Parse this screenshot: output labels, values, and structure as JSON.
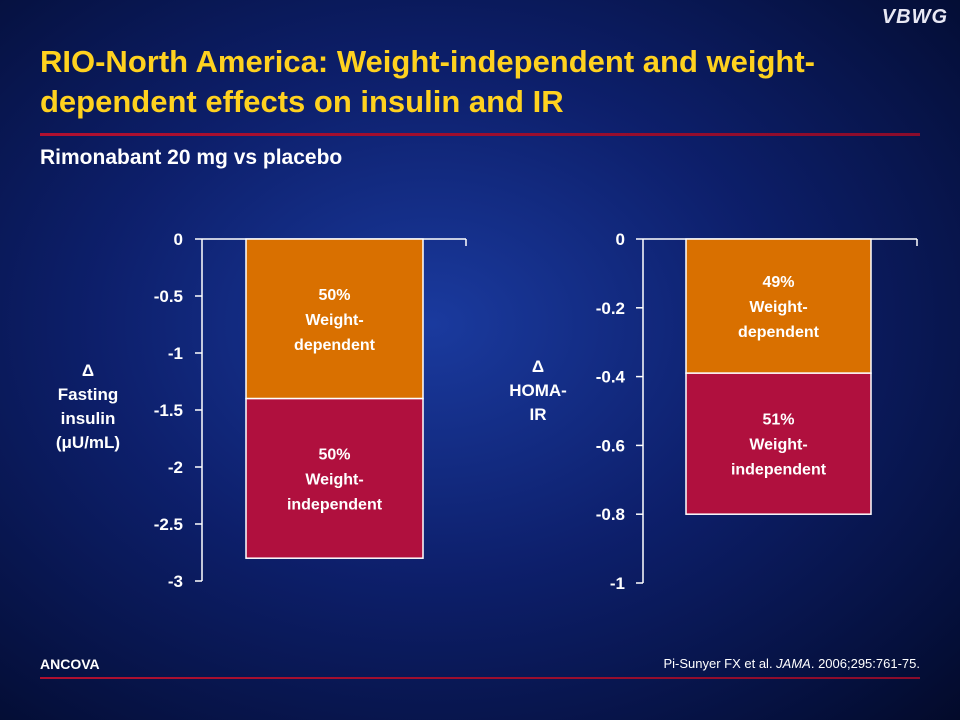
{
  "header": {
    "logo": "VBWG",
    "title": "RIO-North America: Weight-independent and weight-dependent effects on insulin and IR",
    "subtitle": "Rimonabant 20 mg vs placebo"
  },
  "footer": {
    "method": "ANCOVA",
    "citation_pre": "Pi-Sunyer FX et al. ",
    "citation_journal": "JAMA",
    "citation_post": ". 2006;295:761-75."
  },
  "colors": {
    "weight_dependent": "#d97000",
    "weight_independent": "#b0103e",
    "title": "#ffd21f",
    "rule": "#b01030"
  },
  "chart_data": [
    {
      "type": "bar",
      "stacked": true,
      "ylabel": [
        "Δ",
        "Fasting",
        "insulin",
        "(μU/mL)"
      ],
      "ylim": [
        -3,
        0
      ],
      "yticks": [
        0,
        -0.5,
        -1,
        -1.5,
        -2,
        -2.5,
        -3
      ],
      "ytick_labels": [
        "0",
        "-0.5",
        "-1",
        "-1.5",
        "-2",
        "-2.5",
        "-3"
      ],
      "total": -2.8,
      "segments": [
        {
          "key": "weight_dependent",
          "from": 0,
          "to": -1.4,
          "label": [
            "50%",
            "Weight-",
            "dependent"
          ]
        },
        {
          "key": "weight_independent",
          "from": -1.4,
          "to": -2.8,
          "label": [
            "50%",
            "Weight-",
            "independent"
          ]
        }
      ]
    },
    {
      "type": "bar",
      "stacked": true,
      "ylabel": [
        "Δ",
        "HOMA-",
        "IR"
      ],
      "ylim": [
        -1,
        0
      ],
      "yticks": [
        0,
        -0.2,
        -0.4,
        -0.6,
        -0.8,
        -1
      ],
      "ytick_labels": [
        "0",
        "-0.2",
        "-0.4",
        "-0.6",
        "-0.8",
        "-1"
      ],
      "total": -0.8,
      "segments": [
        {
          "key": "weight_dependent",
          "from": 0,
          "to": -0.39,
          "label": [
            "49%",
            "Weight-",
            "dependent"
          ]
        },
        {
          "key": "weight_independent",
          "from": -0.39,
          "to": -0.8,
          "label": [
            "51%",
            "Weight-",
            "independent"
          ]
        }
      ]
    }
  ]
}
